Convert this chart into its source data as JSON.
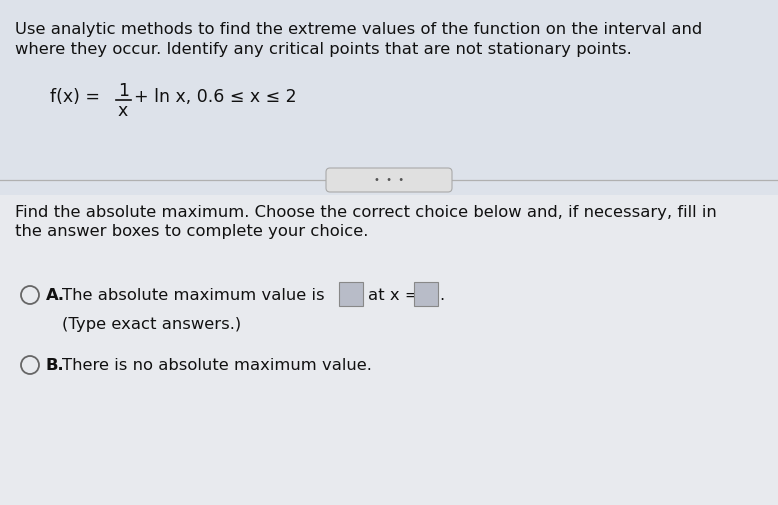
{
  "bg_color": "#c8cdd8",
  "upper_bg_color": "#dde2ea",
  "lower_bg_color": "#e8eaee",
  "text_color": "#111111",
  "header_line1": "Use analytic methods to find the extreme values of the function on the interval and",
  "header_line2": "where they occur. Identify any critical points that are not stationary points.",
  "divider_dots": "•  •  •",
  "body_text1": "Find the absolute maximum. Choose the correct choice below and, if necessary, fill in",
  "body_text2": "the answer boxes to complete your choice.",
  "choice_A_label": "A.",
  "choice_A_text": "The absolute maximum value is",
  "choice_A_at": "at x =",
  "choice_A_note": "(Type exact answers.)",
  "choice_B_label": "B.",
  "choice_B_text": "There is no absolute maximum value.",
  "font_size_header": 11.8,
  "font_size_body": 11.8,
  "font_size_func": 12.5,
  "line_color": "#b0b0b0",
  "dot_btn_color": "#e0e0e0",
  "dot_btn_edge": "#aaaaaa",
  "box_face_color": "#b8bcc8",
  "box_edge_color": "#888888",
  "circle_edge_color": "#666666"
}
